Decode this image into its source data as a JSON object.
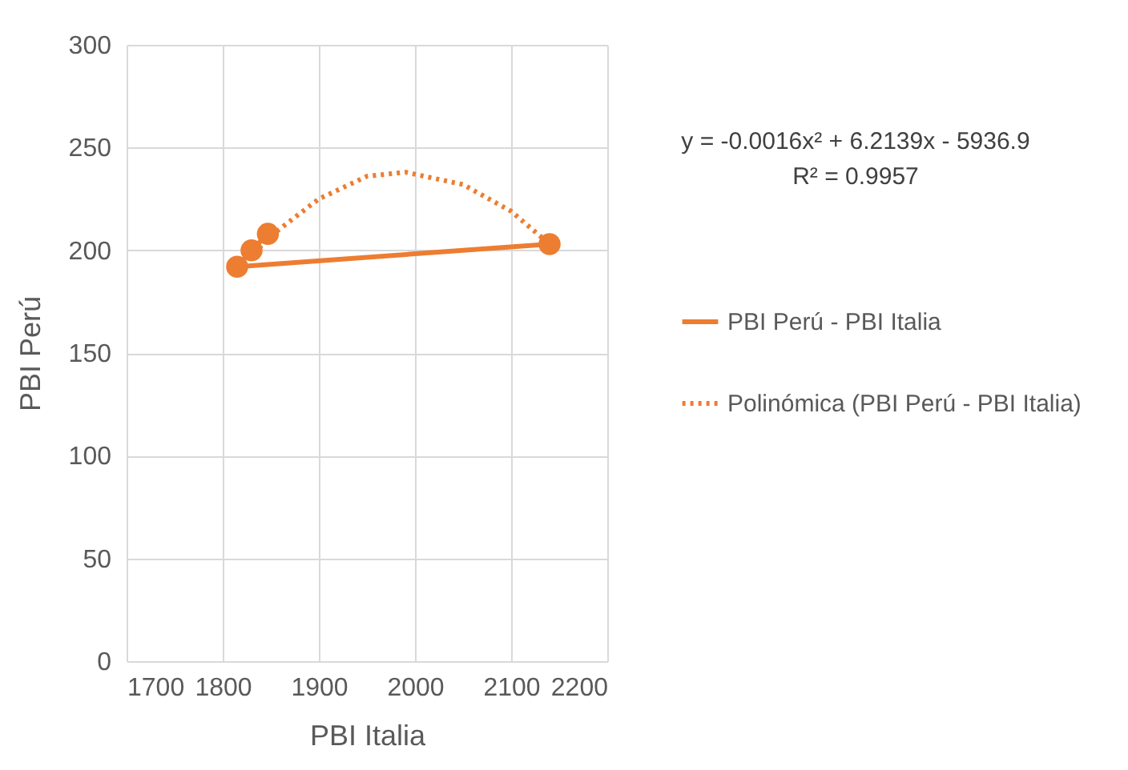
{
  "chart_data": {
    "type": "scatter",
    "xlabel": "PBI Italia",
    "ylabel": "PBI Perú",
    "xlim": [
      1700,
      2200
    ],
    "xticks": [
      1700,
      1800,
      1900,
      2000,
      2100,
      2200
    ],
    "ylim": [
      0,
      300
    ],
    "yticks": [
      0,
      50,
      100,
      150,
      200,
      250,
      300
    ],
    "grid": true,
    "legend": "right",
    "annotations": [
      "y = -0.0016x² + 6.2139x - 5936.9",
      "R² = 0.9957"
    ],
    "series": [
      {
        "name": "PBI Perú - PBI Italia",
        "type": "line",
        "color": "#ed7d31",
        "marker": "circle",
        "line_style": "solid",
        "x": [
          1847,
          1830,
          1815,
          2140
        ],
        "values": [
          208,
          200,
          192,
          203
        ]
      },
      {
        "name": "Polinómica (PBI Perú - PBI Italia)",
        "type": "line",
        "color": "#ed7d31",
        "marker": "none",
        "line_style": "dotted",
        "x": [
          1815,
          1850,
          1900,
          1950,
          1990,
          2050,
          2100,
          2140
        ],
        "values": [
          190,
          207,
          225,
          236,
          238,
          232,
          219,
          203
        ]
      }
    ]
  }
}
